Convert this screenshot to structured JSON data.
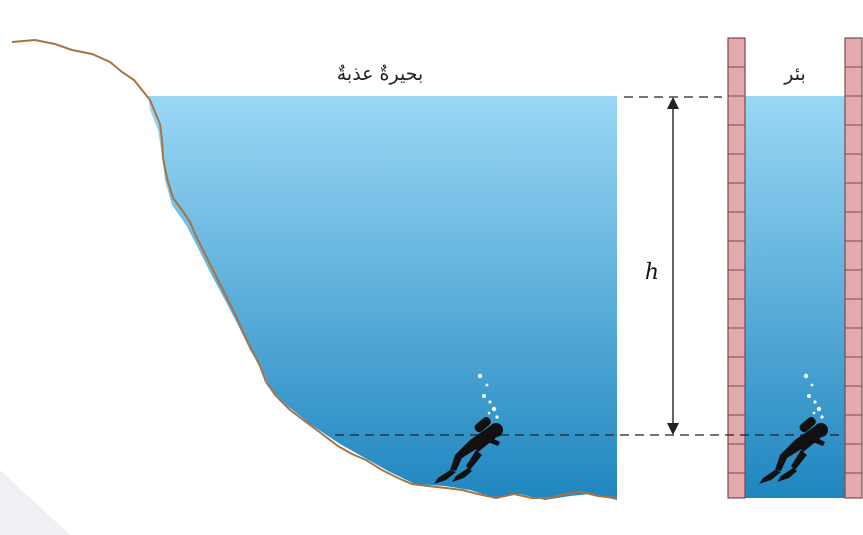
{
  "labels": {
    "lake": "بحيرةٌ عذبةٌ",
    "well": "بئر",
    "height": "h"
  },
  "colors": {
    "water_top": "#9ad7f5",
    "water_bottom": "#1f86bf",
    "ground_line": "#a87342",
    "brick_fill": "#e3a9ad",
    "brick_line": "#7a4a4e",
    "page_corner": "#eef0f3"
  },
  "icons": [
    "scuba-diver-icon",
    "bubble-icon"
  ]
}
